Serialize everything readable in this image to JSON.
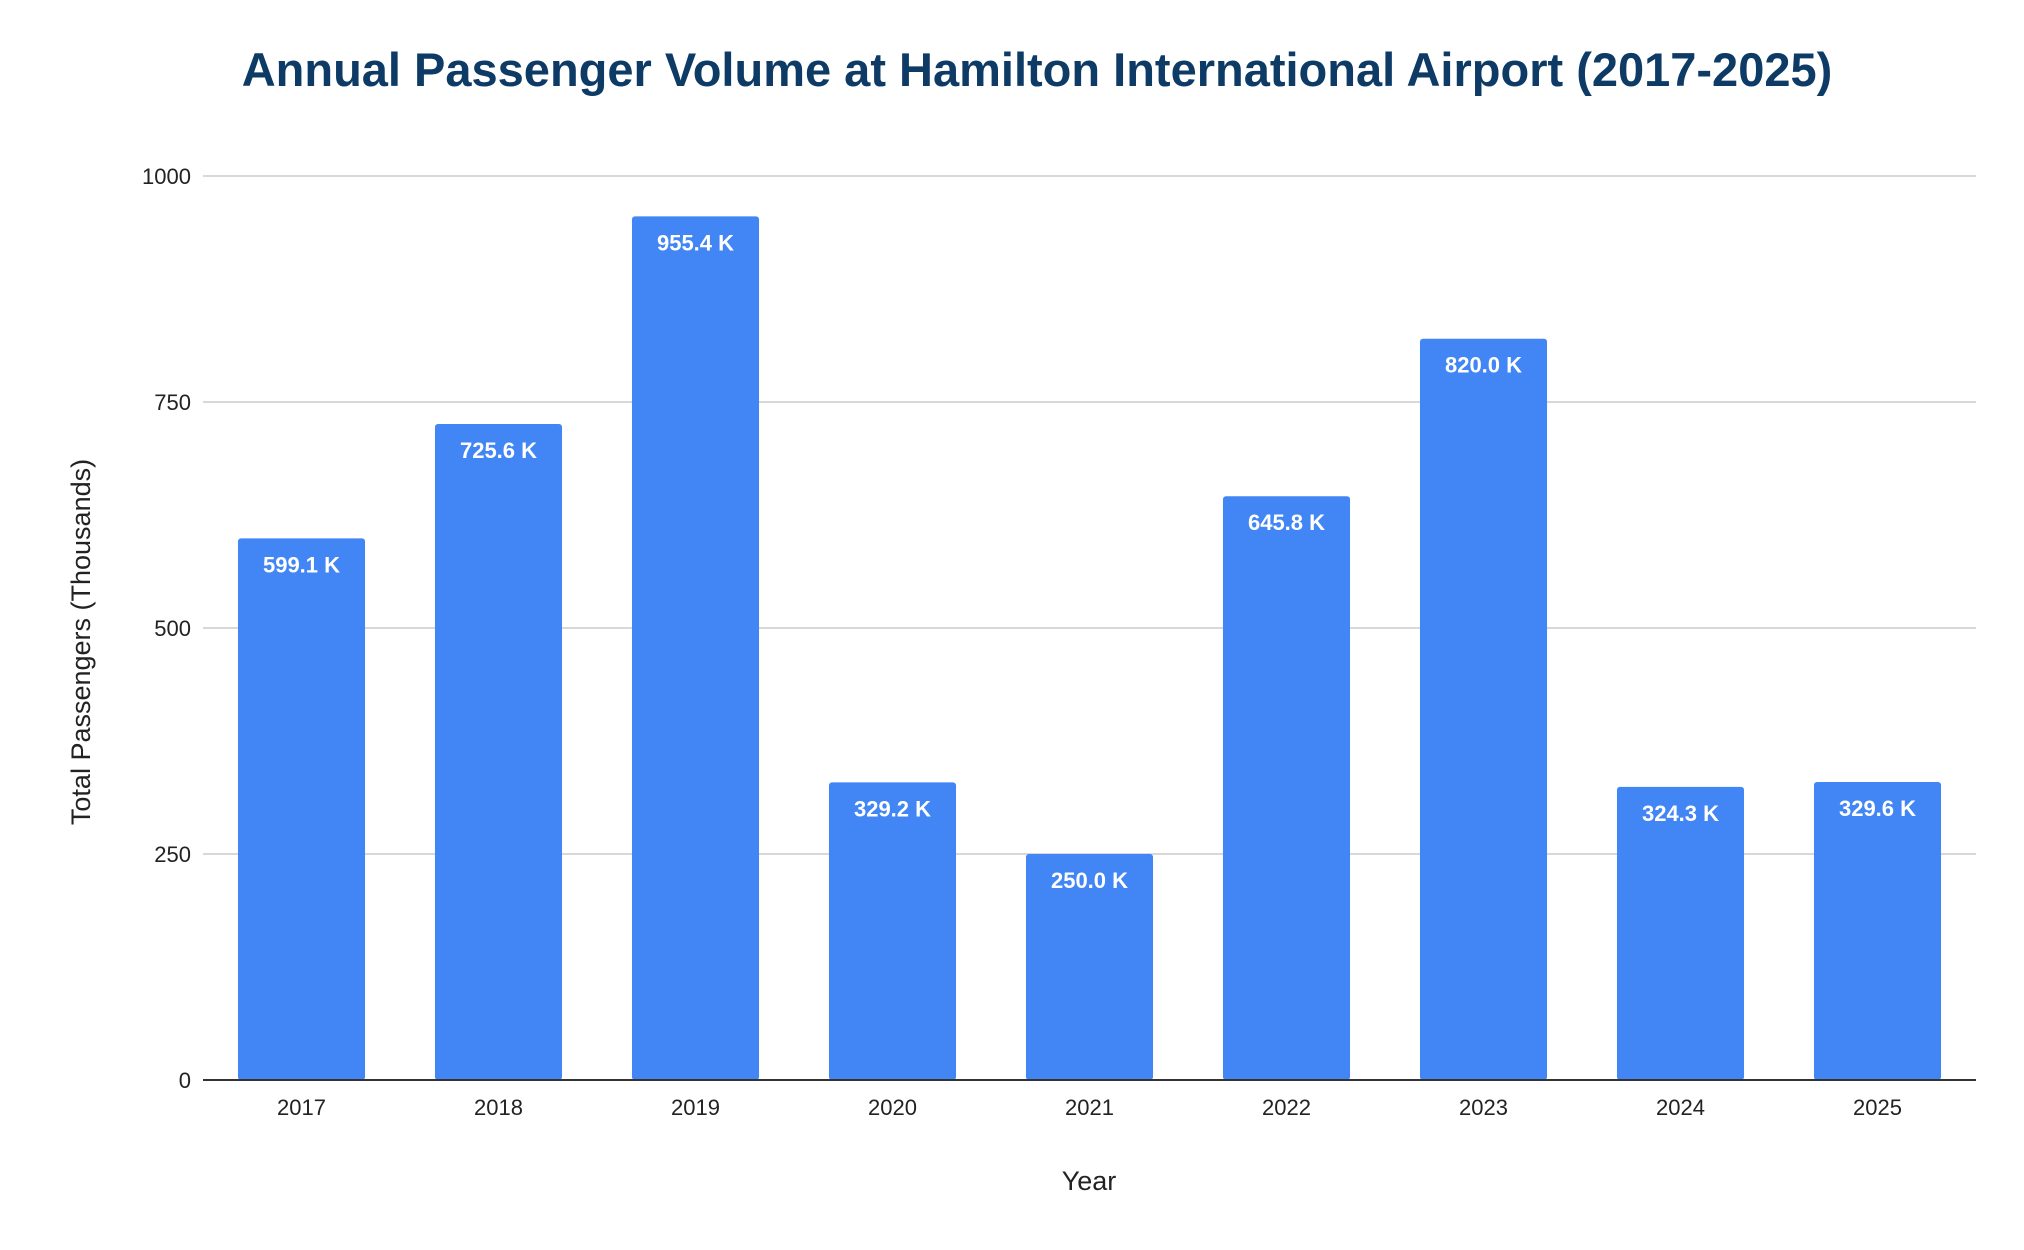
{
  "chart_data": {
    "type": "bar",
    "title": "Annual Passenger Volume at Hamilton International Airport (2017-2025)",
    "xlabel": "Year",
    "ylabel": "Total Passengers (Thousands)",
    "categories": [
      "2017",
      "2018",
      "2019",
      "2020",
      "2021",
      "2022",
      "2023",
      "2024",
      "2025"
    ],
    "values": [
      599.1,
      725.6,
      955.4,
      329.2,
      250.0,
      645.8,
      820.0,
      324.3,
      329.6
    ],
    "data_labels": [
      "599.1 K",
      "725.6 K",
      "955.4 K",
      "329.2 K",
      "250.0 K",
      "645.8 K",
      "820.0 K",
      "324.3 K",
      "329.6 K"
    ],
    "ylim": [
      0,
      1000
    ],
    "yticks": [
      0,
      250,
      500,
      750,
      1000
    ],
    "ytick_labels": [
      "0",
      "250",
      "500",
      "750",
      "1000"
    ],
    "grid": true,
    "legend": "none",
    "colors": {
      "bar": "#4285f4",
      "title": "#0d3b66",
      "grid": "#cccccc",
      "axis": "#333333",
      "text": "#222222",
      "data_label": "#ffffff"
    }
  }
}
